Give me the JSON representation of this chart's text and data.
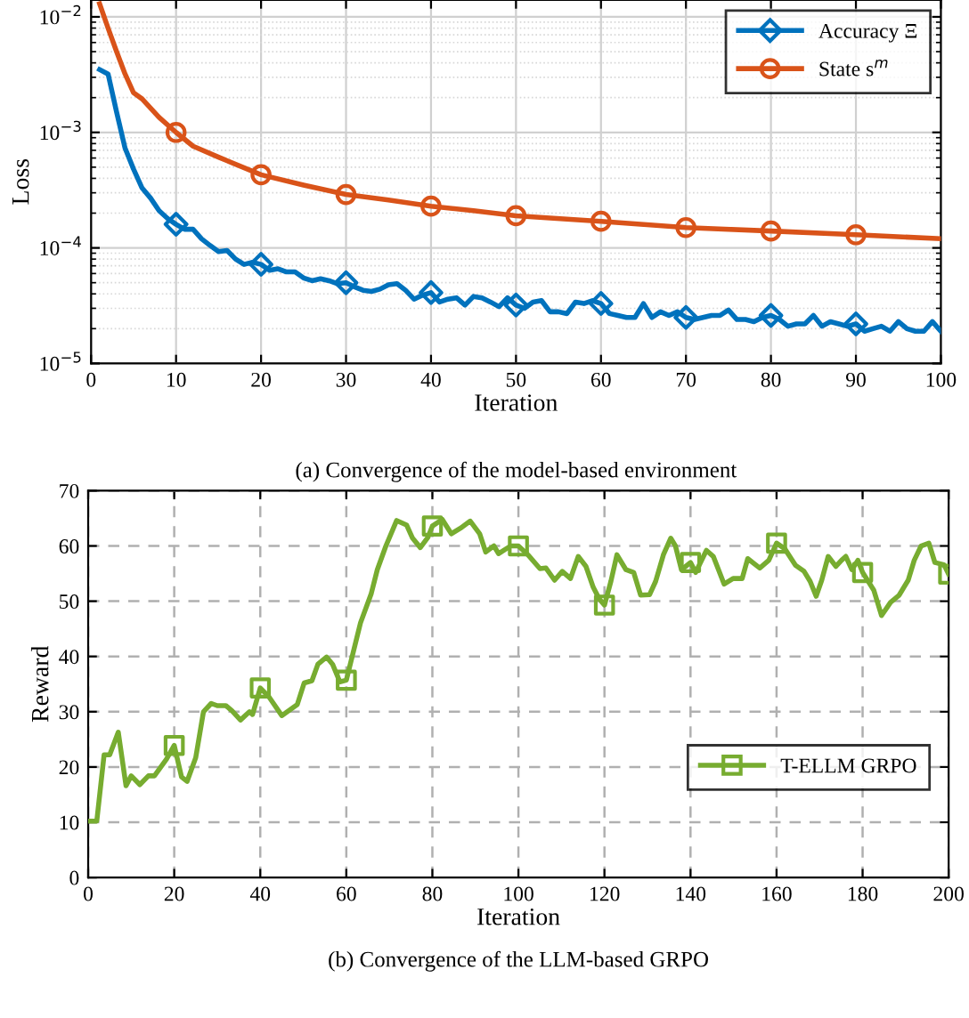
{
  "chart_data": [
    {
      "type": "line",
      "xlabel": "Iteration",
      "ylabel": "Loss",
      "annotations": [
        "(a) Convergence of the model-based environment"
      ],
      "log": "y",
      "grid": true,
      "legend": "top right",
      "line_style": "solid",
      "xlim": [
        0,
        100
      ],
      "xticks": [
        0,
        10,
        20,
        30,
        40,
        50,
        60,
        70,
        80,
        90,
        100
      ],
      "ylim": [
        1e-05,
        0.014
      ],
      "yticks": [
        {
          "value": 1e-05,
          "label": "10$^{−5}$"
        },
        {
          "value": 0.0001,
          "label": "10$^{−4}$"
        },
        {
          "value": 0.001,
          "label": "10$^{−3}$"
        },
        {
          "value": 0.01,
          "label": "10$^{−2}$"
        }
      ],
      "series": [
        {
          "name": "Accuracy Ξ",
          "color": "#0072bd",
          "x": [
            1,
            2,
            3,
            4,
            5,
            6,
            7,
            8,
            9,
            10,
            11,
            12,
            13,
            14,
            15,
            16,
            17,
            18,
            19,
            20,
            21,
            22,
            23,
            24,
            25,
            26,
            27,
            28,
            29,
            30,
            31,
            32,
            33,
            34,
            35,
            36,
            37,
            38,
            39,
            40,
            41,
            42,
            43,
            44,
            45,
            46,
            47,
            48,
            49,
            50,
            51,
            52,
            53,
            54,
            55,
            56,
            57,
            58,
            59,
            60,
            61,
            62,
            63,
            64,
            65,
            66,
            67,
            68,
            69,
            70,
            71,
            72,
            73,
            74,
            75,
            76,
            77,
            78,
            79,
            80,
            81,
            82,
            83,
            84,
            85,
            86,
            87,
            88,
            89,
            90,
            91,
            92,
            93,
            94,
            95,
            96,
            97,
            98,
            99,
            100
          ],
          "values": [
            0.0035,
            0.0032,
            0.0015,
            0.00073,
            0.00048,
            0.00033,
            0.00027,
            0.00021,
            0.00018,
            0.00016,
            0.000145,
            0.000145,
            0.00012,
            0.000105,
            9.3e-05,
            9.5e-05,
            8e-05,
            7.2e-05,
            7.5e-05,
            7.2e-05,
            6.4e-05,
            6.6e-05,
            6.2e-05,
            6.2e-05,
            5.5e-05,
            5.2e-05,
            5.4e-05,
            5.2e-05,
            4.9e-05,
            5e-05,
            4.6e-05,
            4.3e-05,
            4.2e-05,
            4.4e-05,
            4.8e-05,
            4.9e-05,
            4.3e-05,
            3.6e-05,
            3.9e-05,
            4.1e-05,
            3.4e-05,
            3.6e-05,
            3.7e-05,
            3.2e-05,
            3.8e-05,
            3.7e-05,
            3.4e-05,
            3.1e-05,
            3.7e-05,
            3.2e-05,
            3e-05,
            3.4e-05,
            3.5e-05,
            2.8e-05,
            2.8e-05,
            2.7e-05,
            3.4e-05,
            3.3e-05,
            3.5e-05,
            3.3e-05,
            2.7e-05,
            2.6e-05,
            2.5e-05,
            2.5e-05,
            3.3e-05,
            2.5e-05,
            2.8e-05,
            2.6e-05,
            2.8e-05,
            2.5e-05,
            2.4e-05,
            2.5e-05,
            2.6e-05,
            2.6e-05,
            2.9e-05,
            2.4e-05,
            2.4e-05,
            2.3e-05,
            2.5e-05,
            2.6e-05,
            2.4e-05,
            2.1e-05,
            2.2e-05,
            2.2e-05,
            2.6e-05,
            2.1e-05,
            2.3e-05,
            2.2e-05,
            2.1e-05,
            2.2e-05,
            1.9e-05,
            2e-05,
            2.1e-05,
            1.9e-05,
            2.3e-05,
            2e-05,
            1.9e-05,
            1.9e-05,
            2.3e-05,
            1.9e-05
          ]
        },
        {
          "type": "scatter",
          "color": "#0072bd",
          "marker": "diamond",
          "x": [
            10,
            20,
            30,
            40,
            50,
            60,
            70,
            80,
            90
          ],
          "values": [
            0.00016,
            7.2e-05,
            5e-05,
            4.1e-05,
            3.2e-05,
            3.3e-05,
            2.5e-05,
            2.6e-05,
            2.2e-05
          ]
        },
        {
          "name": "State s$^{m}$",
          "color": "#d95319",
          "x": [
            1,
            2,
            3,
            4,
            5,
            6,
            8,
            10,
            12,
            15,
            20,
            25,
            30,
            35,
            40,
            45,
            50,
            60,
            70,
            80,
            90,
            100
          ],
          "values": [
            0.013,
            0.008,
            0.005,
            0.0032,
            0.0022,
            0.00195,
            0.00135,
            0.001,
            0.00076,
            0.00061,
            0.00043,
            0.00035,
            0.00029,
            0.00026,
            0.00023,
            0.00021,
            0.00019,
            0.00017,
            0.00015,
            0.00014,
            0.00013,
            0.00012
          ]
        },
        {
          "type": "scatter",
          "color": "#d95319",
          "marker": "circle",
          "x": [
            10,
            20,
            30,
            40,
            50,
            60,
            70,
            80,
            90
          ],
          "values": [
            0.001,
            0.00043,
            0.00029,
            0.00023,
            0.00019,
            0.00017,
            0.00015,
            0.00014,
            0.00013
          ]
        }
      ]
    },
    {
      "type": "line",
      "xlabel": "Iteration",
      "ylabel": "Reward",
      "annotations": [
        "(b) Convergence of the LLM-based GRPO"
      ],
      "grid": true,
      "legend": "lower right",
      "line_style": "solid",
      "xlim": [
        0,
        200
      ],
      "xticks": [
        0,
        20,
        40,
        60,
        80,
        100,
        120,
        140,
        160,
        180,
        200
      ],
      "ylim": [
        0,
        70
      ],
      "yticks": [
        0,
        10,
        20,
        30,
        40,
        50,
        60,
        70
      ],
      "series": [
        {
          "name": "T-ELLM GRPO",
          "color": "#77ac30",
          "x": [
            0.5,
            2,
            3.7,
            5,
            7,
            8.8,
            10,
            12,
            14,
            15.4,
            18.2,
            20,
            21.7,
            23,
            25,
            26.8,
            28.6,
            30,
            32,
            33.4,
            35.4,
            37.5,
            38.2,
            40,
            42,
            45,
            48.6,
            50.2,
            52,
            53.4,
            55.4,
            56.8,
            58.5,
            60,
            63.3,
            65.8,
            67.2,
            69.2,
            71.7,
            74,
            75.4,
            77.2,
            79,
            80,
            82.3,
            84.4,
            86.5,
            88.8,
            91,
            92.4,
            94.3,
            95.4,
            98.2,
            100,
            102.2,
            105,
            106.4,
            108.4,
            110.2,
            112.1,
            113.9,
            115.7,
            117.4,
            118.8,
            120,
            121.5,
            122.9,
            125,
            126.8,
            128.4,
            130.5,
            131.9,
            133.7,
            135.4,
            136.5,
            137.9,
            140,
            141.2,
            143.7,
            145.3,
            147.8,
            149.9,
            152,
            153.3,
            156.1,
            158.2,
            160,
            161.9,
            164.4,
            166.4,
            167.8,
            169.2,
            170.5,
            172,
            173.8,
            175.1,
            176.1,
            177.5,
            178.9,
            180,
            182.6,
            184.4,
            186.5,
            188.5,
            190.6,
            192,
            193.6,
            195.4,
            196.8,
            198.9,
            200
          ],
          "values": [
            10.2,
            10.2,
            22.2,
            22.2,
            26.3,
            16.6,
            18.4,
            16.8,
            18.4,
            18.4,
            21.4,
            23.9,
            18.2,
            17.4,
            21.7,
            30,
            31.5,
            31.1,
            31.1,
            30.2,
            28.5,
            30,
            29.5,
            34.3,
            32.7,
            29.3,
            31.3,
            35.2,
            35.6,
            38.6,
            39.9,
            38.6,
            35.4,
            35.7,
            46.1,
            51.4,
            55.7,
            60,
            64.6,
            63.8,
            61.4,
            59.7,
            61.6,
            63.6,
            64.8,
            62.2,
            63.2,
            64.5,
            62.2,
            58.9,
            60,
            58.6,
            60,
            60,
            58.4,
            55.9,
            56,
            53.8,
            55.4,
            54.1,
            58.1,
            56.3,
            52.5,
            50.4,
            49.3,
            53.6,
            58.4,
            55.7,
            55.2,
            51.1,
            51.2,
            53.6,
            58.4,
            61.4,
            60,
            55.7,
            57,
            55.2,
            59.2,
            58.1,
            53.1,
            54.1,
            54.1,
            57.7,
            56,
            57.4,
            60.5,
            59.5,
            56.5,
            55.4,
            53.6,
            50.9,
            53.8,
            58.1,
            56.3,
            57.4,
            58.1,
            55.7,
            57.4,
            55.2,
            52,
            47.4,
            49.8,
            51.1,
            53.8,
            57.4,
            60,
            60.5,
            57,
            56.6,
            54.9
          ]
        },
        {
          "type": "scatter",
          "color": "#77ac30",
          "marker": "square",
          "x": [
            20,
            40,
            60,
            80,
            100,
            120,
            140,
            160,
            180,
            200
          ],
          "values": [
            23.9,
            34.3,
            35.7,
            63.6,
            60,
            49.3,
            57,
            60.5,
            55.2,
            54.9
          ]
        }
      ]
    }
  ]
}
